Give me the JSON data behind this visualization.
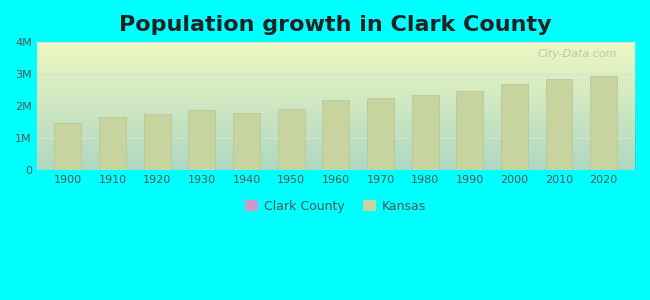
{
  "title": "Population growth in Clark County",
  "title_fontsize": 16,
  "title_fontweight": "bold",
  "background_color": "#00FFFF",
  "years": [
    1900,
    1910,
    1920,
    1930,
    1940,
    1950,
    1960,
    1970,
    1980,
    1990,
    2000,
    2010,
    2020
  ],
  "kansas_values": [
    1470000,
    1657000,
    1769000,
    1881000,
    1801000,
    1905000,
    2179000,
    2249000,
    2364000,
    2478000,
    2688000,
    2853000,
    2938000
  ],
  "bar_color": "#c8d4a0",
  "bar_edge_color": "#b8c490",
  "ylim": [
    0,
    4000000
  ],
  "yticks": [
    0,
    1000000,
    2000000,
    3000000,
    4000000
  ],
  "ytick_labels": [
    "0",
    "1M",
    "2M",
    "3M",
    "4M"
  ],
  "clark_county_color": "#cc99cc",
  "kansas_legend_color": "#c8d4a0",
  "legend_label_clark": "Clark County",
  "legend_label_kansas": "Kansas",
  "watermark": "City-Data.com",
  "watermark_color": "#bbbbbb",
  "axis_text_color": "#555555",
  "grid_color": "#dddddd"
}
